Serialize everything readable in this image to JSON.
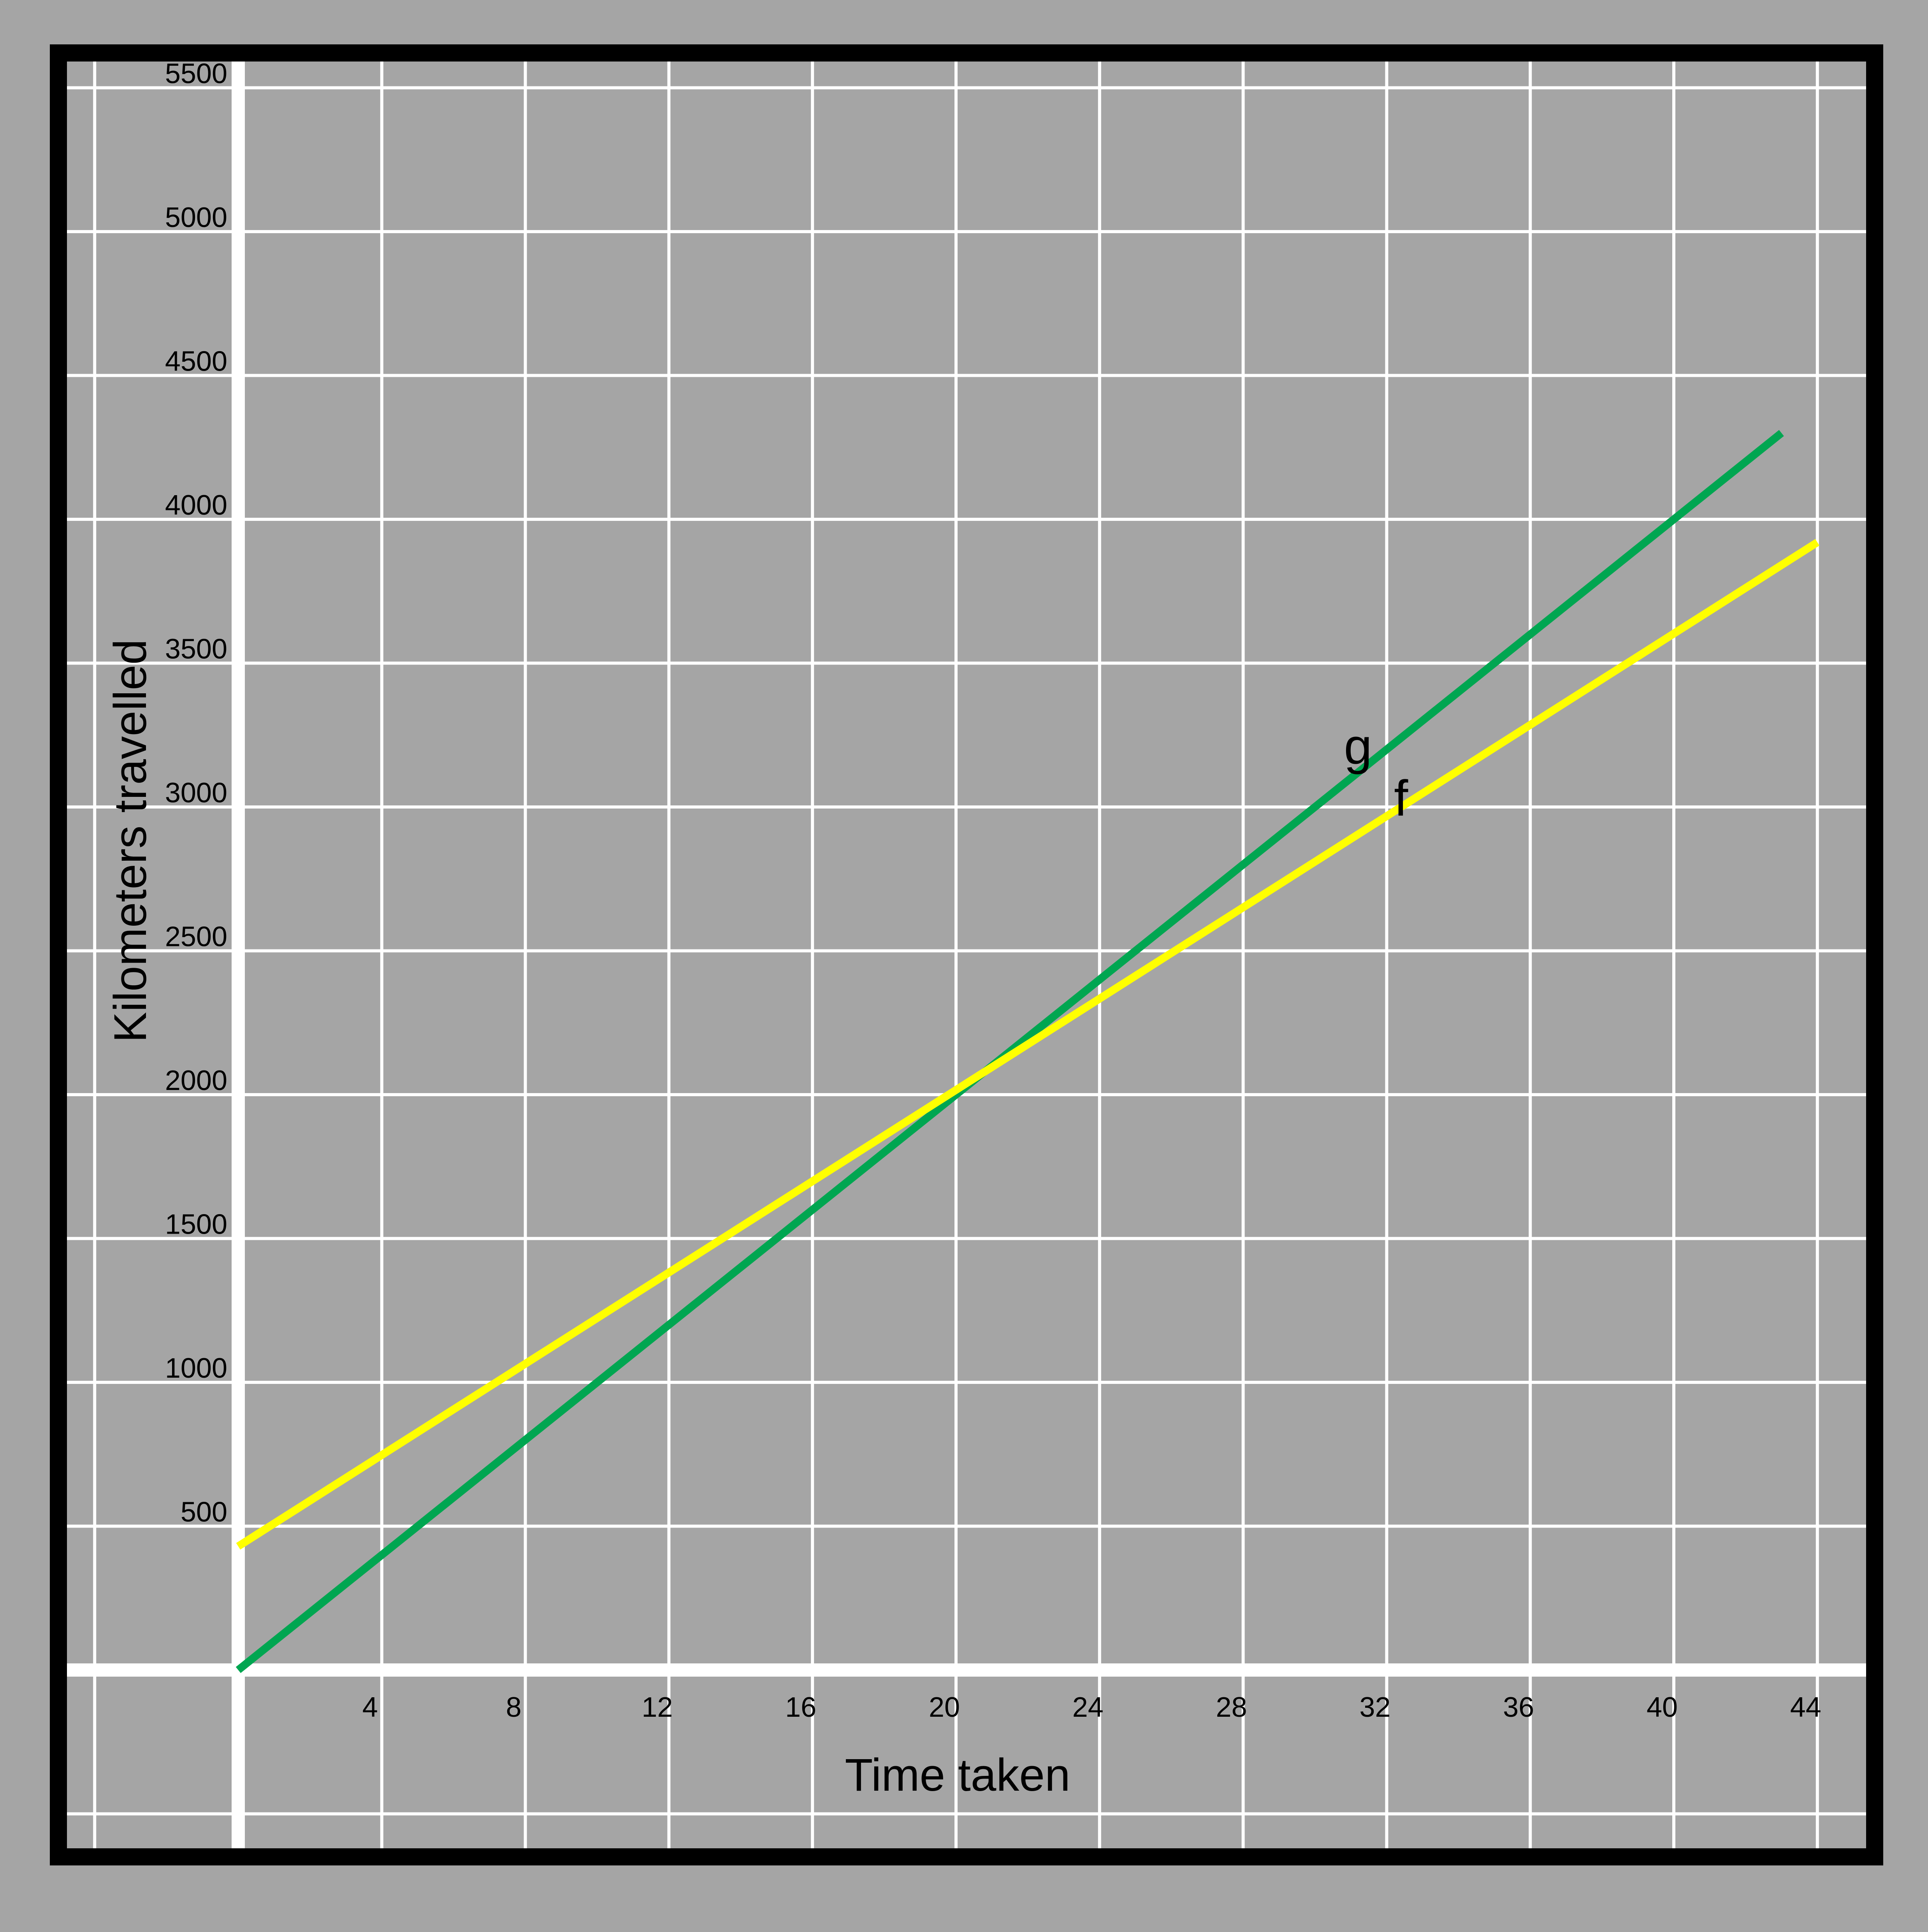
{
  "chart_data": {
    "type": "line",
    "title": "",
    "xlabel": "Time taken",
    "ylabel": "Kilometers travelled",
    "xlim": [
      0,
      44
    ],
    "ylim": [
      0,
      5500
    ],
    "x_ticks": [
      4,
      8,
      12,
      16,
      20,
      24,
      28,
      32,
      36,
      40,
      44
    ],
    "y_ticks": [
      500,
      1000,
      1500,
      2000,
      2500,
      3000,
      3500,
      4000,
      4500,
      5000,
      5500
    ],
    "x_tick_labels": [
      "4",
      "8",
      "12",
      "16",
      "20",
      "24",
      "28",
      "32",
      "36",
      "40",
      "44"
    ],
    "y_tick_labels": [
      "500",
      "1000",
      "1500",
      "2000",
      "2500",
      "3000",
      "3500",
      "4000",
      "4500",
      "5000",
      "5500"
    ],
    "grid": true,
    "legend": "none",
    "series": [
      {
        "name": "g",
        "color": "#00a651",
        "x": [
          0,
          43
        ],
        "y": [
          0,
          4300
        ]
      },
      {
        "name": "f",
        "color": "#ffff00",
        "x": [
          0,
          44
        ],
        "y": [
          430,
          3920
        ]
      }
    ],
    "annotations": [
      {
        "text": "g",
        "x": 31.2,
        "y": 3150
      },
      {
        "text": "f",
        "x": 32.4,
        "y": 2970
      }
    ]
  },
  "colors": {
    "background": "#a5a5a5",
    "frame": "#000000",
    "grid": "#ffffff"
  }
}
